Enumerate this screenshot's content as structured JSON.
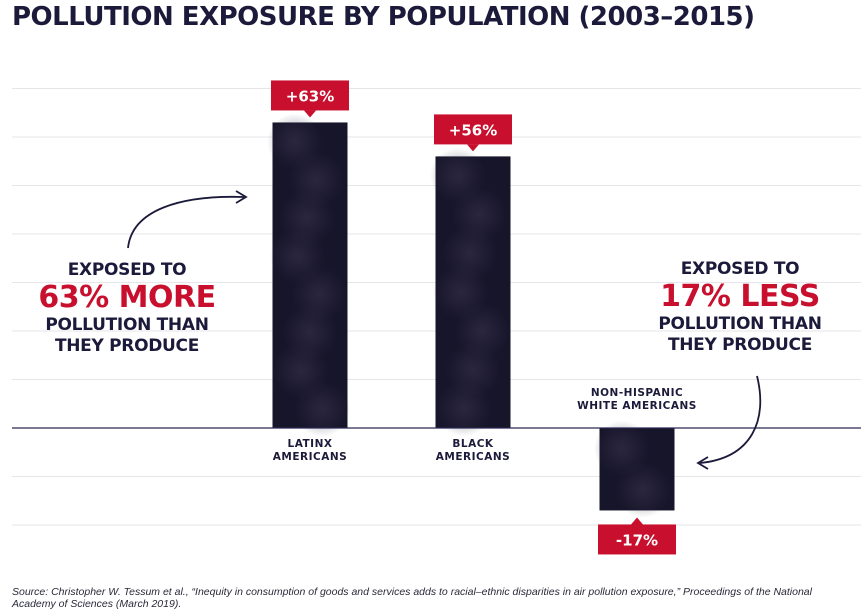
{
  "title": "POLLUTION EXPOSURE BY POPULATION (2003–2015)",
  "source": "Source: Christopher W. Tessum et al., “Inequity in consumption of goods and services adds to racial–ethnic disparities in air pollution exposure,” Proceedings of the National Academy of Sciences (March 2019).",
  "annotations": {
    "left": {
      "line1": "EXPOSED TO",
      "line2": "63% MORE",
      "line3": "POLLUTION THAN",
      "line4": "THEY PRODUCE"
    },
    "right": {
      "line1": "EXPOSED TO",
      "line2": "17% LESS",
      "line3": "POLLUTION THAN",
      "line4": "THEY PRODUCE"
    }
  },
  "colors": {
    "accent": "#c8102e",
    "ink": "#1c1a3a",
    "bar": "#17152a",
    "grid": "#e6e6ea"
  },
  "chart_data": {
    "type": "bar",
    "categories": [
      [
        "LATINX",
        "AMERICANS"
      ],
      [
        "BLACK",
        "AMERICANS"
      ],
      [
        "NON-HISPANIC",
        "WHITE AMERICANS"
      ]
    ],
    "values": [
      63,
      56,
      -17
    ],
    "value_labels": [
      "+63%",
      "+56%",
      "-17%"
    ],
    "ylim": [
      -20,
      70
    ],
    "grid": true
  }
}
